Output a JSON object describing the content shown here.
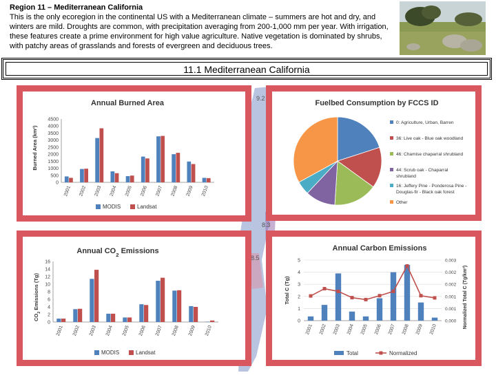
{
  "header": {
    "title": "Region 11 – Mediterranean California",
    "description": "This is the only ecoregion in the continental US with a Mediterranean climate – summers are hot and dry, and winters are mild. Droughts are common, with precipitation averaging from 200-1,000 mm per year. With irrigation, these features create a prime environment for high value agriculture. Native vegetation is dominated by shrubs, with patchy areas of grasslands and forests of evergreen and deciduous trees."
  },
  "section_title": "11.1 Mediterranean California",
  "map_labels": [
    "9.2",
    "8.3",
    "8.5"
  ],
  "colors": {
    "blue": "#4f81bd",
    "red": "#c0504d",
    "green": "#9bbb59",
    "purple": "#8064a2",
    "teal": "#4bacc6",
    "orange": "#f79646",
    "panel": "#d9575f"
  },
  "chart_data": [
    {
      "type": "bar",
      "title": "Annual Burned Area",
      "xlabel": "",
      "ylabel": "Burned Area (km²)",
      "categories": [
        "2001",
        "2002",
        "2003",
        "2004",
        "2005",
        "2006",
        "2007",
        "2008",
        "2009",
        "2010"
      ],
      "series": [
        {
          "name": "MODIS",
          "values": [
            420,
            950,
            3150,
            780,
            440,
            1830,
            3270,
            2000,
            1480,
            320
          ]
        },
        {
          "name": "Landsat",
          "values": [
            320,
            970,
            3840,
            650,
            480,
            1700,
            3300,
            2100,
            1300,
            300
          ]
        }
      ],
      "yticks": [
        "0",
        "500",
        "1000",
        "1500",
        "2000",
        "2500",
        "3000",
        "3500",
        "4000",
        "4500"
      ],
      "ylim": [
        0,
        4500
      ],
      "legend": "bottom"
    },
    {
      "type": "pie",
      "title": "Fuelbed Consumption by FCCS ID",
      "labels": [
        "0: Agriculture, Urban, Barren",
        "36: Live oak - Blue oak woodland",
        "46: Chamise chaparral shrubland",
        "44: Scrub oak - Chaparral shrubland",
        "16: Jeffery Pine - Ponderosa Pine - Douglas-fir - Black oak forest",
        "Other"
      ],
      "values": [
        20,
        15,
        16,
        11,
        5,
        33
      ],
      "legend": "right"
    },
    {
      "type": "bar",
      "title_parts": [
        "Annual CO",
        "2",
        " Emissions"
      ],
      "xlabel": "",
      "ylabel_parts": [
        "CO",
        "2",
        " Emissions (Tg)"
      ],
      "categories": [
        "2001",
        "2002",
        "2003",
        "2004",
        "2005",
        "2006",
        "2007",
        "2008",
        "2009",
        "2010"
      ],
      "series": [
        {
          "name": "MODIS",
          "values": [
            0.9,
            3.4,
            11.4,
            2.2,
            1.2,
            4.7,
            10.9,
            8.3,
            4.2,
            0.1
          ]
        },
        {
          "name": "Landsat",
          "values": [
            0.9,
            3.5,
            13.8,
            2.2,
            1.2,
            4.5,
            11.7,
            8.4,
            4.0,
            0.4
          ]
        }
      ],
      "yticks": [
        "0",
        "2",
        "4",
        "6",
        "8",
        "10",
        "12",
        "14",
        "16"
      ],
      "ylim": [
        0,
        16
      ],
      "legend": "bottom"
    },
    {
      "type": "bar-line",
      "title": "Annual Carbon Emissions",
      "xlabel": "",
      "ylabel_left": "Total C (Tg)",
      "ylabel_right": "Normalized Total C (Tg/km²)",
      "categories": [
        "2001",
        "2002",
        "2003",
        "2004",
        "2005",
        "2006",
        "2007",
        "2008",
        "2009",
        "2010"
      ],
      "series": [
        {
          "name": "Total",
          "kind": "bar",
          "axis": "left",
          "values": [
            0.35,
            1.3,
            3.9,
            0.75,
            0.35,
            1.85,
            4.0,
            4.6,
            1.5,
            0.25
          ]
        },
        {
          "name": "Normalized",
          "kind": "line",
          "axis": "right",
          "values": [
            0.00102,
            0.00132,
            0.00121,
            0.00095,
            0.00087,
            0.00103,
            0.00121,
            0.00226,
            0.00103,
            0.00094
          ]
        }
      ],
      "yticks_left": [
        "0",
        "1",
        "2",
        "3",
        "4",
        "5"
      ],
      "ylim_left": [
        0,
        5
      ],
      "yticks_right": [
        "0.000",
        "0.001",
        "0.001",
        "0.002",
        "0.002",
        "0.003"
      ],
      "ylim_right": [
        0,
        0.0025
      ],
      "legend": "bottom"
    }
  ]
}
